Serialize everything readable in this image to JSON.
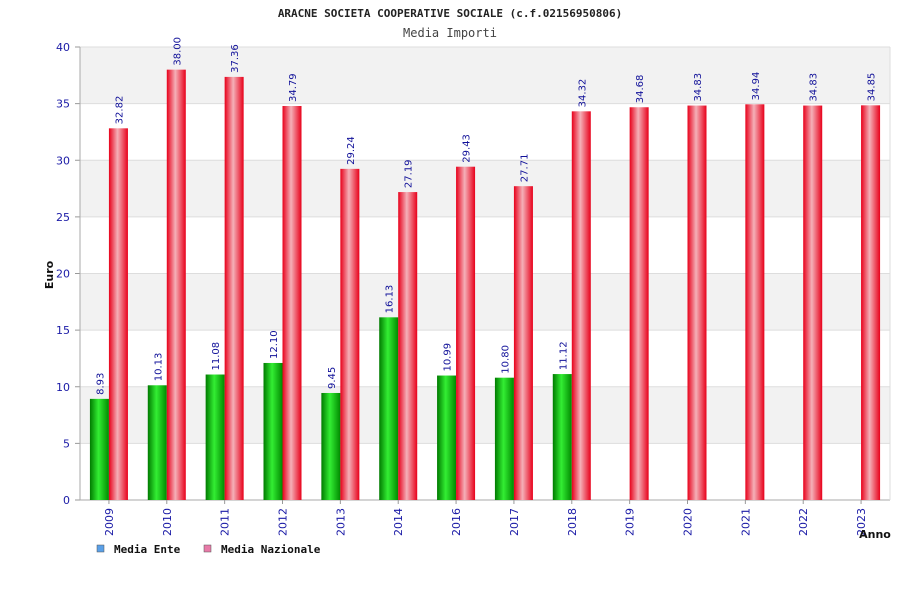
{
  "chart_data": {
    "type": "bar",
    "title": "ARACNE SOCIETA COOPERATIVE SOCIALE (c.f.02156950806)",
    "subtitle": "Media Importi",
    "ylabel": "Euro",
    "xlabel": "Anno",
    "ylim": [
      0,
      40
    ],
    "yticks": [
      "0",
      "5",
      "10",
      "15",
      "20",
      "25",
      "30",
      "35",
      "40"
    ],
    "categories": [
      "2009",
      "2010",
      "2011",
      "2012",
      "2013",
      "2014",
      "2016",
      "2017",
      "2018",
      "2019",
      "2020",
      "2021",
      "2022",
      "2023"
    ],
    "series": [
      {
        "name": "Media Ente",
        "color": "#00b000",
        "values": [
          8.93,
          10.13,
          11.08,
          12.1,
          9.45,
          16.13,
          10.99,
          10.8,
          11.12,
          null,
          null,
          null,
          null,
          null
        ],
        "labels": [
          "8.93",
          "10.13",
          "11.08",
          "12.10",
          "9.45",
          "16.13",
          "10.99",
          "10.80",
          "11.12",
          "",
          "",
          "",
          "",
          ""
        ]
      },
      {
        "name": "Media Nazionale",
        "color": "#ee1122",
        "values": [
          32.82,
          38.0,
          37.36,
          34.79,
          29.24,
          27.19,
          29.43,
          27.71,
          34.32,
          34.68,
          34.83,
          34.94,
          34.83,
          34.85
        ],
        "labels": [
          "32.82",
          "38.00",
          "37.36",
          "34.79",
          "29.24",
          "27.19",
          "29.43",
          "27.71",
          "34.32",
          "34.68",
          "34.83",
          "34.94",
          "34.83",
          "34.85"
        ]
      }
    ],
    "legend": {
      "position": "bottom-left",
      "items": [
        {
          "label": "Media Ente",
          "color": "#5aa0e8"
        },
        {
          "label": "Media Nazionale",
          "color": "#e87aa8"
        }
      ]
    },
    "grid": true,
    "band_colors": [
      "#f2f2f2",
      "#ffffff"
    ]
  }
}
